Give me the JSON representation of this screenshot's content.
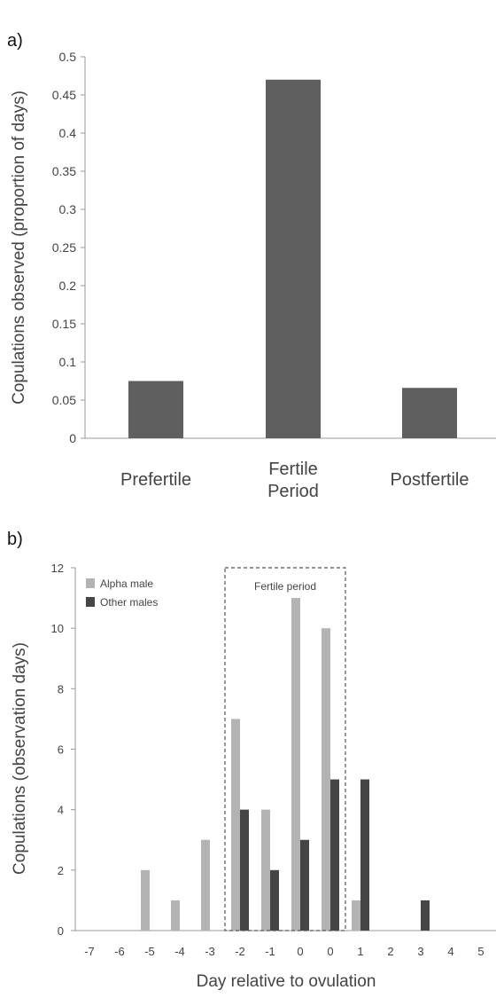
{
  "chart_data": [
    {
      "panel_label": "a)",
      "type": "bar",
      "categories": [
        "Prefertile",
        "Fertile Period",
        "Postfertile"
      ],
      "values": [
        0.075,
        0.47,
        0.066
      ],
      "ylabel": "Copulations observed (proportion of days)",
      "xlabel": "",
      "ylim": [
        0,
        0.5
      ],
      "yticks": [
        "0",
        "0.05",
        "0.1",
        "0.15",
        "0.2",
        "0.25",
        "0.3",
        "0.35",
        "0.4",
        "0.45",
        "0.5"
      ],
      "grid": false,
      "colors": {
        "bar": "#5f5f5f",
        "axis": "#999999"
      }
    },
    {
      "panel_label": "b)",
      "type": "bar",
      "categories": [
        "-7",
        "-6",
        "-5",
        "-4",
        "-3",
        "-2",
        "-1",
        "0",
        "0",
        "1",
        "2",
        "3",
        "4",
        "5"
      ],
      "series": [
        {
          "name": "Alpha male",
          "color": "#b3b3b3",
          "values": [
            0,
            0,
            2,
            1,
            3,
            7,
            4,
            11,
            10,
            1,
            0,
            0,
            0,
            0
          ]
        },
        {
          "name": "Other males",
          "color": "#454545",
          "values": [
            0,
            0,
            0,
            0,
            0,
            4,
            2,
            3,
            5,
            5,
            0,
            1,
            0,
            0
          ]
        }
      ],
      "xlabel": "Day relative to ovulation",
      "ylabel": "Copulations (observation days)",
      "ylim": [
        0,
        12
      ],
      "yticks": [
        "0",
        "2",
        "4",
        "6",
        "8",
        "10",
        "12"
      ],
      "grid": false,
      "legend": "top-left",
      "annotation": {
        "text": "Fertile period",
        "from_category": 5,
        "to_category": 8
      }
    }
  ]
}
